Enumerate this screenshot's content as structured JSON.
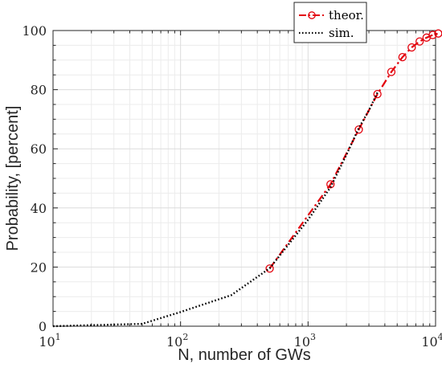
{
  "chart_data": {
    "type": "line",
    "xscale": "log",
    "xlim": [
      10,
      10000
    ],
    "ylim": [
      0,
      100
    ],
    "grid": "on (major and minor)",
    "legend_placement": "top-right",
    "xlabel": "N, number of GWs",
    "ylabel": "Probability, [percent]",
    "x_ticks": [
      {
        "base": "10",
        "exp": "1",
        "value": 10
      },
      {
        "base": "10",
        "exp": "2",
        "value": 100
      },
      {
        "base": "10",
        "exp": "3",
        "value": 1000
      },
      {
        "base": "10",
        "exp": "4",
        "value": 10000
      }
    ],
    "y_ticks": [
      {
        "label": "0",
        "value": 0
      },
      {
        "label": "20",
        "value": 20
      },
      {
        "label": "40",
        "value": 40
      },
      {
        "label": "60",
        "value": 60
      },
      {
        "label": "80",
        "value": 80
      },
      {
        "label": "100",
        "value": 100
      }
    ],
    "series": [
      {
        "name": "theor.",
        "style": "dash-dot with circle markers",
        "color": "#e3000b",
        "x": [
          500,
          1500,
          2500,
          3500,
          4500,
          5500,
          6500,
          7500,
          8500,
          9500,
          10500
        ],
        "y": [
          19.5,
          48,
          66.5,
          78.5,
          86,
          91,
          94.3,
          96.3,
          97.6,
          98.5,
          99
        ]
      },
      {
        "name": "sim.",
        "style": "dotted",
        "color": "#000000",
        "x": [
          10,
          50,
          100,
          250,
          500,
          1000,
          1500,
          2000,
          2500,
          3000,
          3500
        ],
        "y": [
          0,
          0.8,
          4.8,
          10.5,
          19.6,
          36,
          47,
          58,
          67,
          73,
          79
        ]
      }
    ]
  }
}
